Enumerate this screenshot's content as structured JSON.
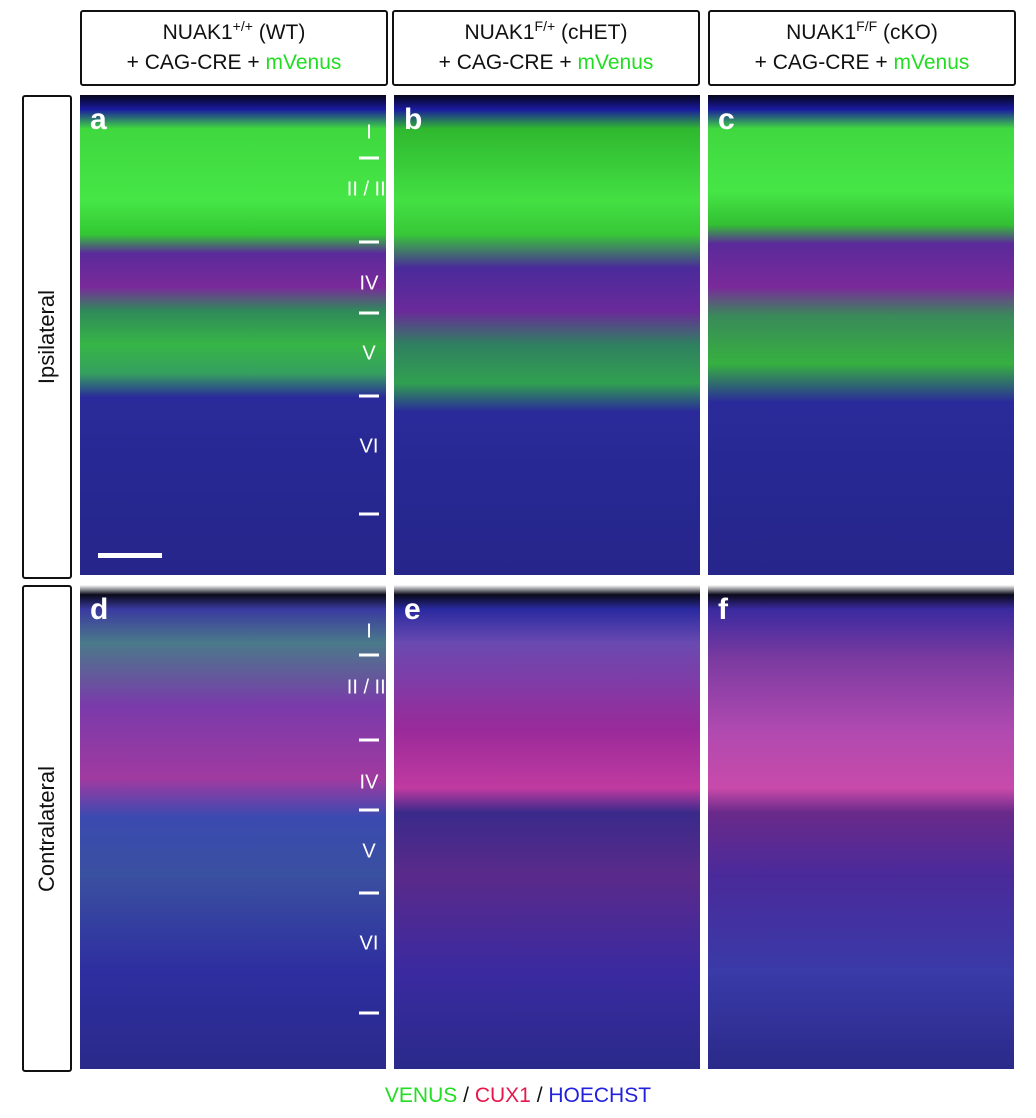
{
  "column_headers": [
    {
      "gene": "NUAK1",
      "genotype": "+/+",
      "label": "(WT)",
      "construct": "+ CAG-CRE +",
      "reporter": "mVenus"
    },
    {
      "gene": "NUAK1",
      "genotype": "F/+",
      "label": "(cHET)",
      "construct": "+ CAG-CRE +",
      "reporter": "mVenus"
    },
    {
      "gene": "NUAK1",
      "genotype": "F/F",
      "label": "(cKO)",
      "construct": "+ CAG-CRE +",
      "reporter": "mVenus"
    }
  ],
  "row_labels": [
    "Ipsilateral",
    "Contralateral"
  ],
  "panels": [
    "a",
    "b",
    "c",
    "d",
    "e",
    "f"
  ],
  "layers": [
    "I",
    "II / III",
    "IV",
    "V",
    "VI"
  ],
  "legend": {
    "items": [
      {
        "text": "VENUS",
        "color": "#22dd22"
      },
      {
        "text": "CUX1",
        "color": "#e8174a"
      },
      {
        "text": "HOECHST",
        "color": "#2222dd"
      }
    ],
    "separator": "/"
  }
}
